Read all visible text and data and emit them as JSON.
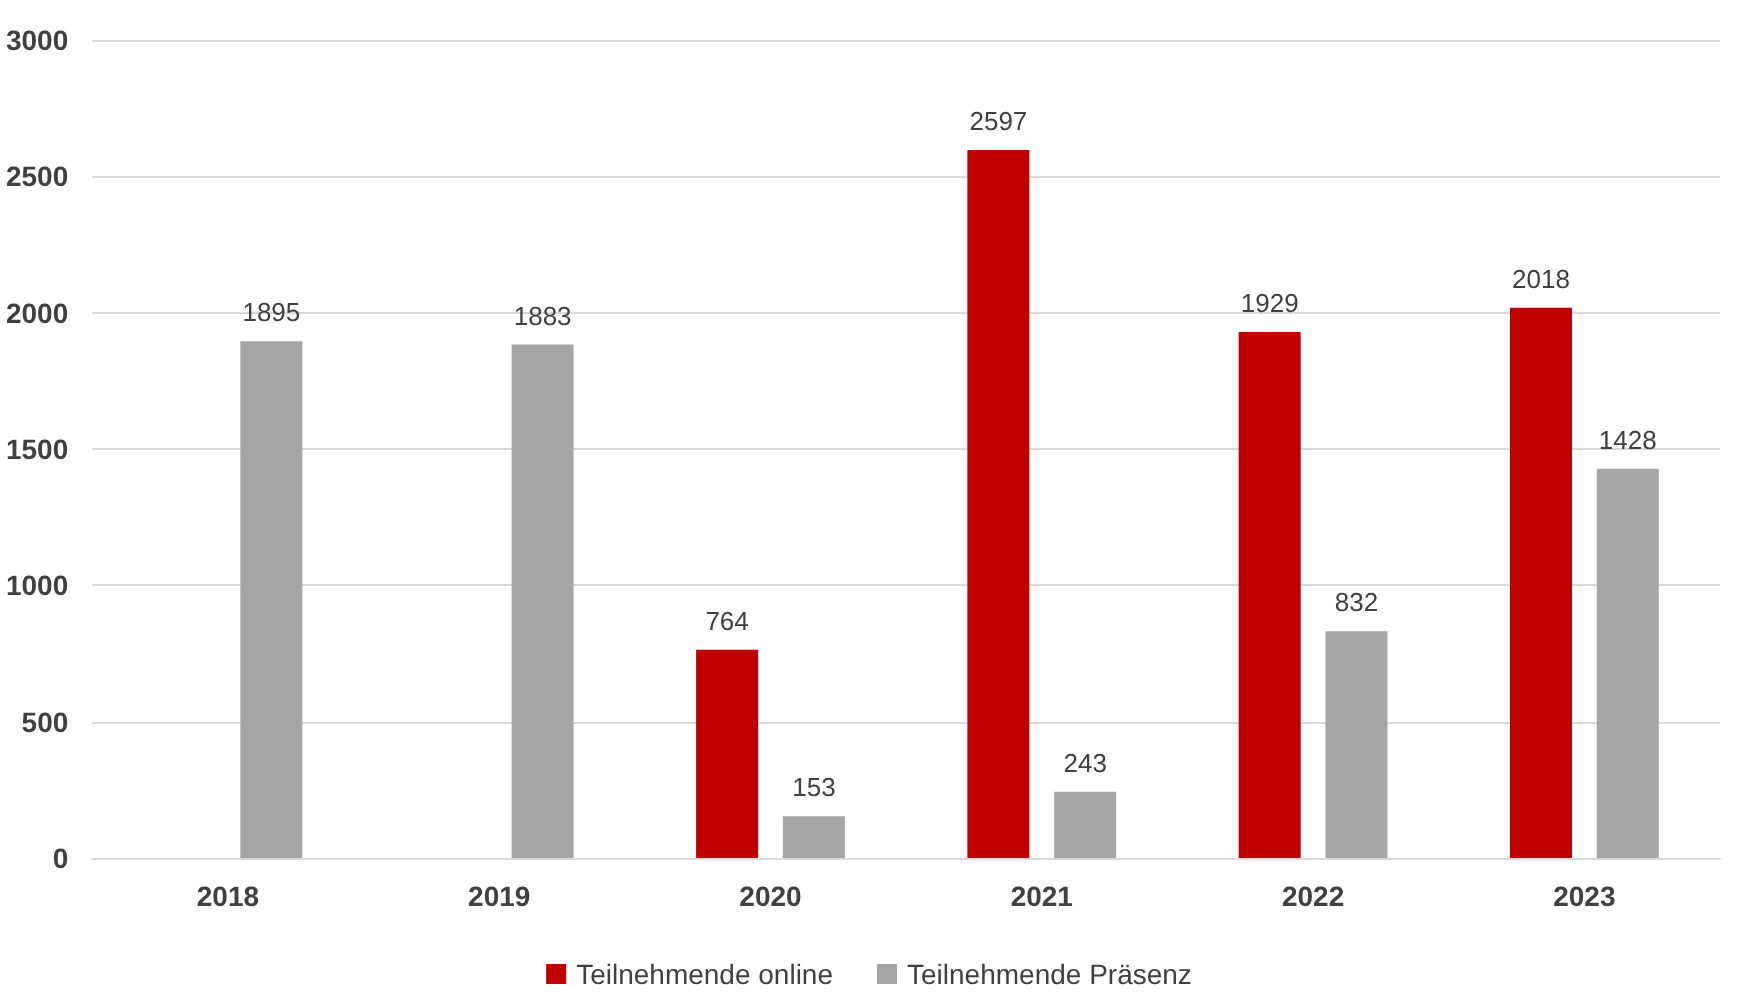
{
  "chart_data": {
    "type": "bar",
    "categories": [
      "2018",
      "2019",
      "2020",
      "2021",
      "2022",
      "2023"
    ],
    "series": [
      {
        "name": "Teilnehmende online",
        "color": "#c00000",
        "values": [
          null,
          null,
          764,
          2597,
          1929,
          2018
        ]
      },
      {
        "name": "Teilnehmende Präsenz",
        "color": "#a6a6a6",
        "values": [
          1895,
          1883,
          153,
          243,
          832,
          1428
        ]
      }
    ],
    "ylim": [
      0,
      3000
    ],
    "yticks": [
      0,
      500,
      1000,
      1500,
      2000,
      2500,
      3000
    ],
    "grid": "y",
    "legend": "bottom",
    "data_labels": true
  }
}
